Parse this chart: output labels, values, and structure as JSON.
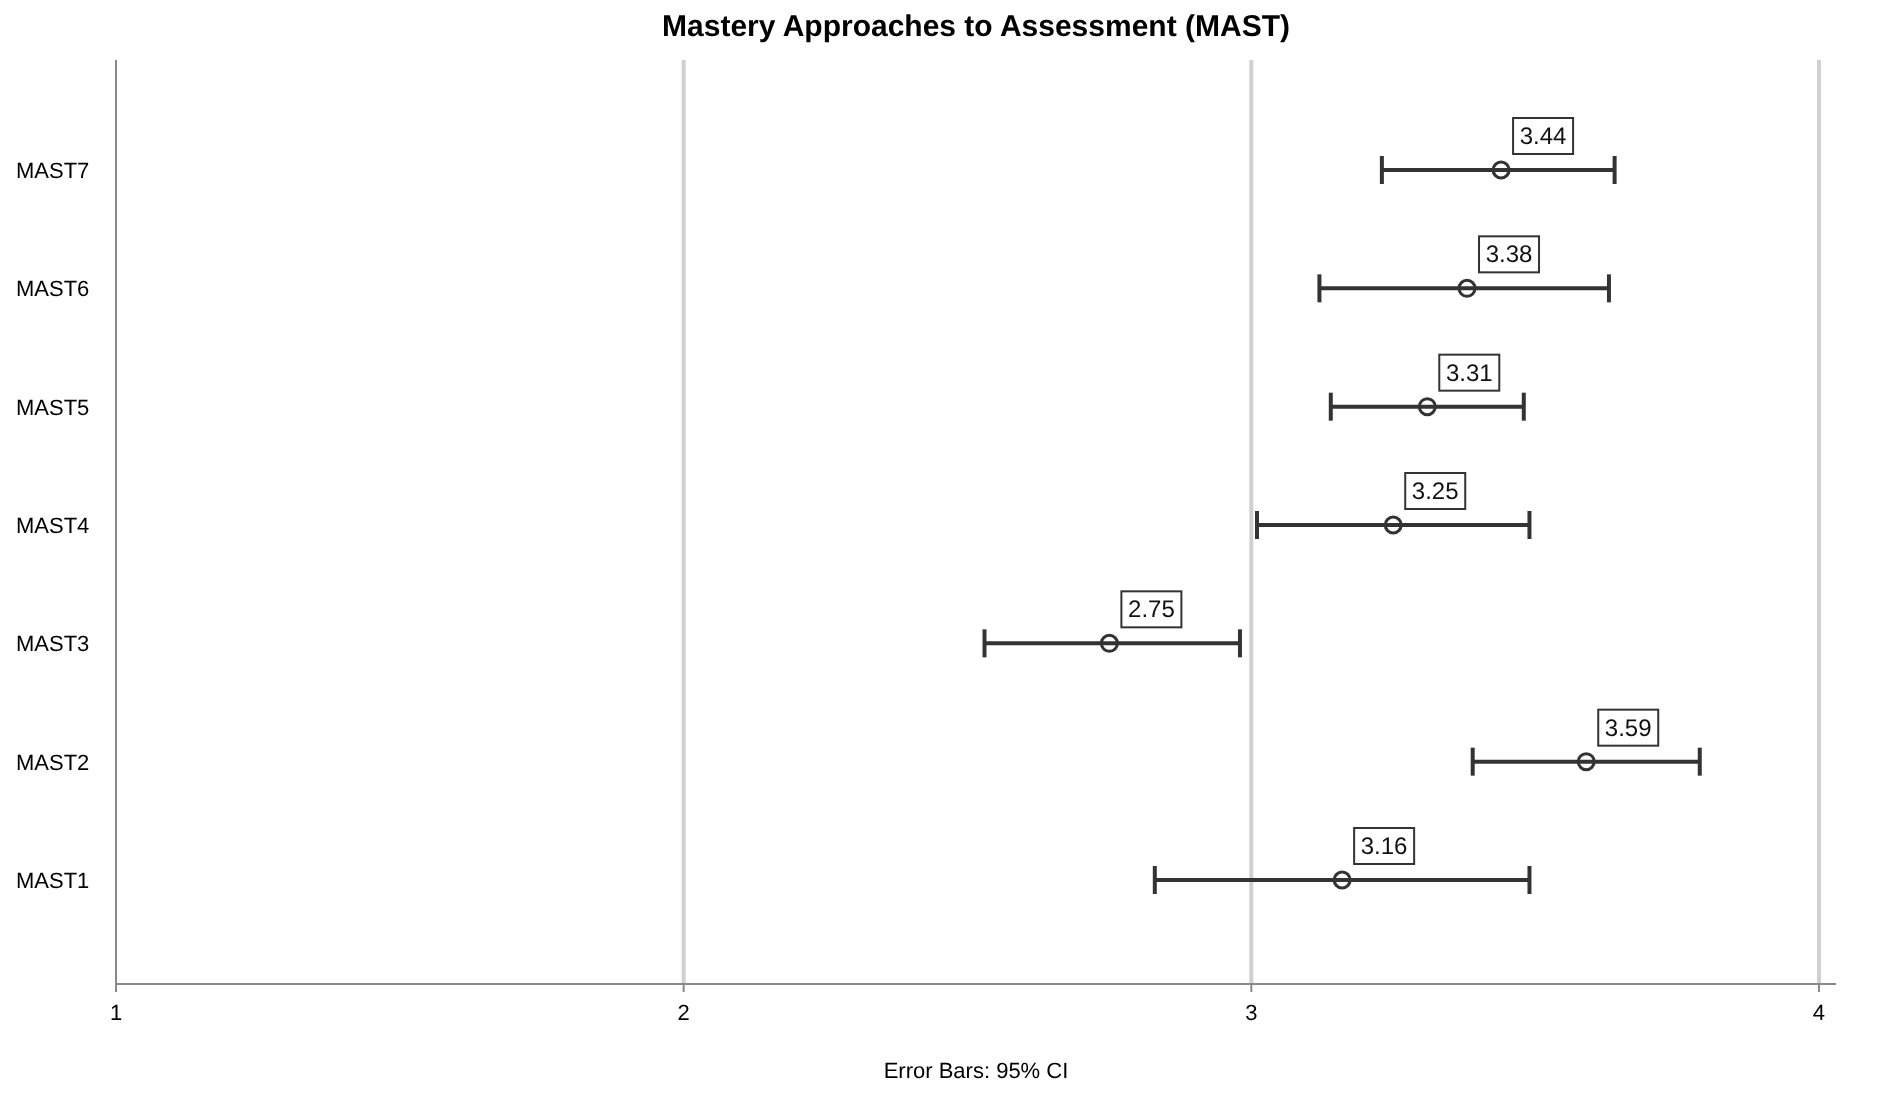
{
  "chart_data": {
    "type": "scatter",
    "orientation": "horizontal",
    "title": "Mastery Approaches to Assessment (MAST)",
    "categories": [
      "MAST7",
      "MAST6",
      "MAST5",
      "MAST4",
      "MAST3",
      "MAST2",
      "MAST1"
    ],
    "values": [
      3.44,
      3.38,
      3.31,
      3.25,
      2.75,
      3.59,
      3.16
    ],
    "errors": [
      [
        3.23,
        3.64
      ],
      [
        3.12,
        3.63
      ],
      [
        3.14,
        3.48
      ],
      [
        3.01,
        3.49
      ],
      [
        2.53,
        2.98
      ],
      [
        3.39,
        3.79
      ],
      [
        2.83,
        3.49
      ]
    ],
    "color": "#333333",
    "marker": "circle",
    "data_labels": true,
    "xlim": [
      1,
      4.03
    ],
    "xticks": [
      1,
      2,
      3,
      4
    ],
    "grid": "x",
    "annotations": [
      "Error Bars: 95% CI"
    ]
  }
}
